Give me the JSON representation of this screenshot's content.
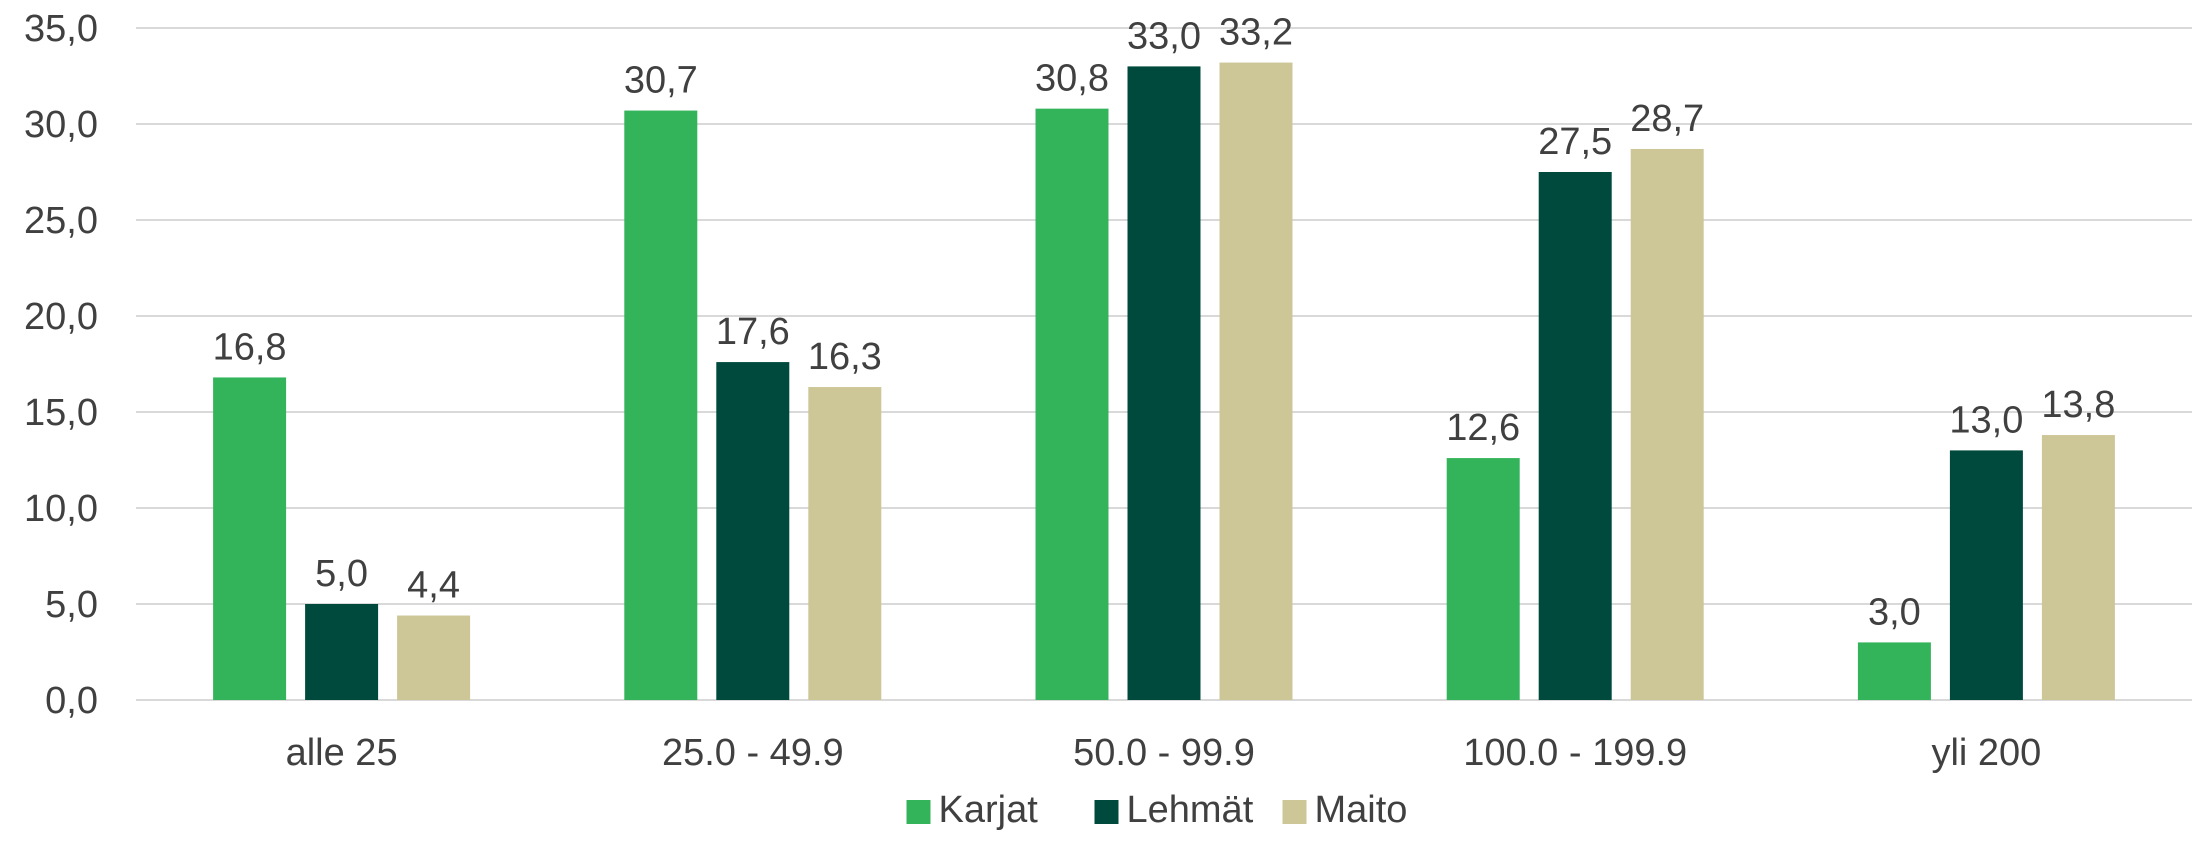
{
  "chart_data": {
    "type": "bar",
    "categories": [
      "alle 25",
      "25.0 - 49.9",
      "50.0 - 99.9",
      "100.0 - 199.9",
      "yli 200"
    ],
    "series": [
      {
        "name": "Karjat",
        "color": "#34b45a",
        "values": [
          16.8,
          30.7,
          30.8,
          12.6,
          3.0
        ],
        "labels": [
          "16,8",
          "30,7",
          "30,8",
          "12,6",
          "3,0"
        ]
      },
      {
        "name": "Lehmät",
        "color": "#004a3d",
        "values": [
          5.0,
          17.6,
          33.0,
          27.5,
          13.0
        ],
        "labels": [
          "5,0",
          "17,6",
          "33,0",
          "27,5",
          "13,0"
        ]
      },
      {
        "name": "Maito",
        "color": "#cdc697",
        "values": [
          4.4,
          16.3,
          33.2,
          28.7,
          13.8
        ],
        "labels": [
          "4,4",
          "16,3",
          "33,2",
          "28,7",
          "13,8"
        ]
      }
    ],
    "ylim": [
      0,
      35
    ],
    "yticks": [
      0,
      5,
      10,
      15,
      20,
      25,
      30,
      35
    ],
    "ytick_labels": [
      "0,0",
      "5,0",
      "10,0",
      "15,0",
      "20,0",
      "25,0",
      "30,0",
      "35,0"
    ],
    "grid": true,
    "legend_position": "bottom",
    "title": "",
    "xlabel": "",
    "ylabel": ""
  }
}
